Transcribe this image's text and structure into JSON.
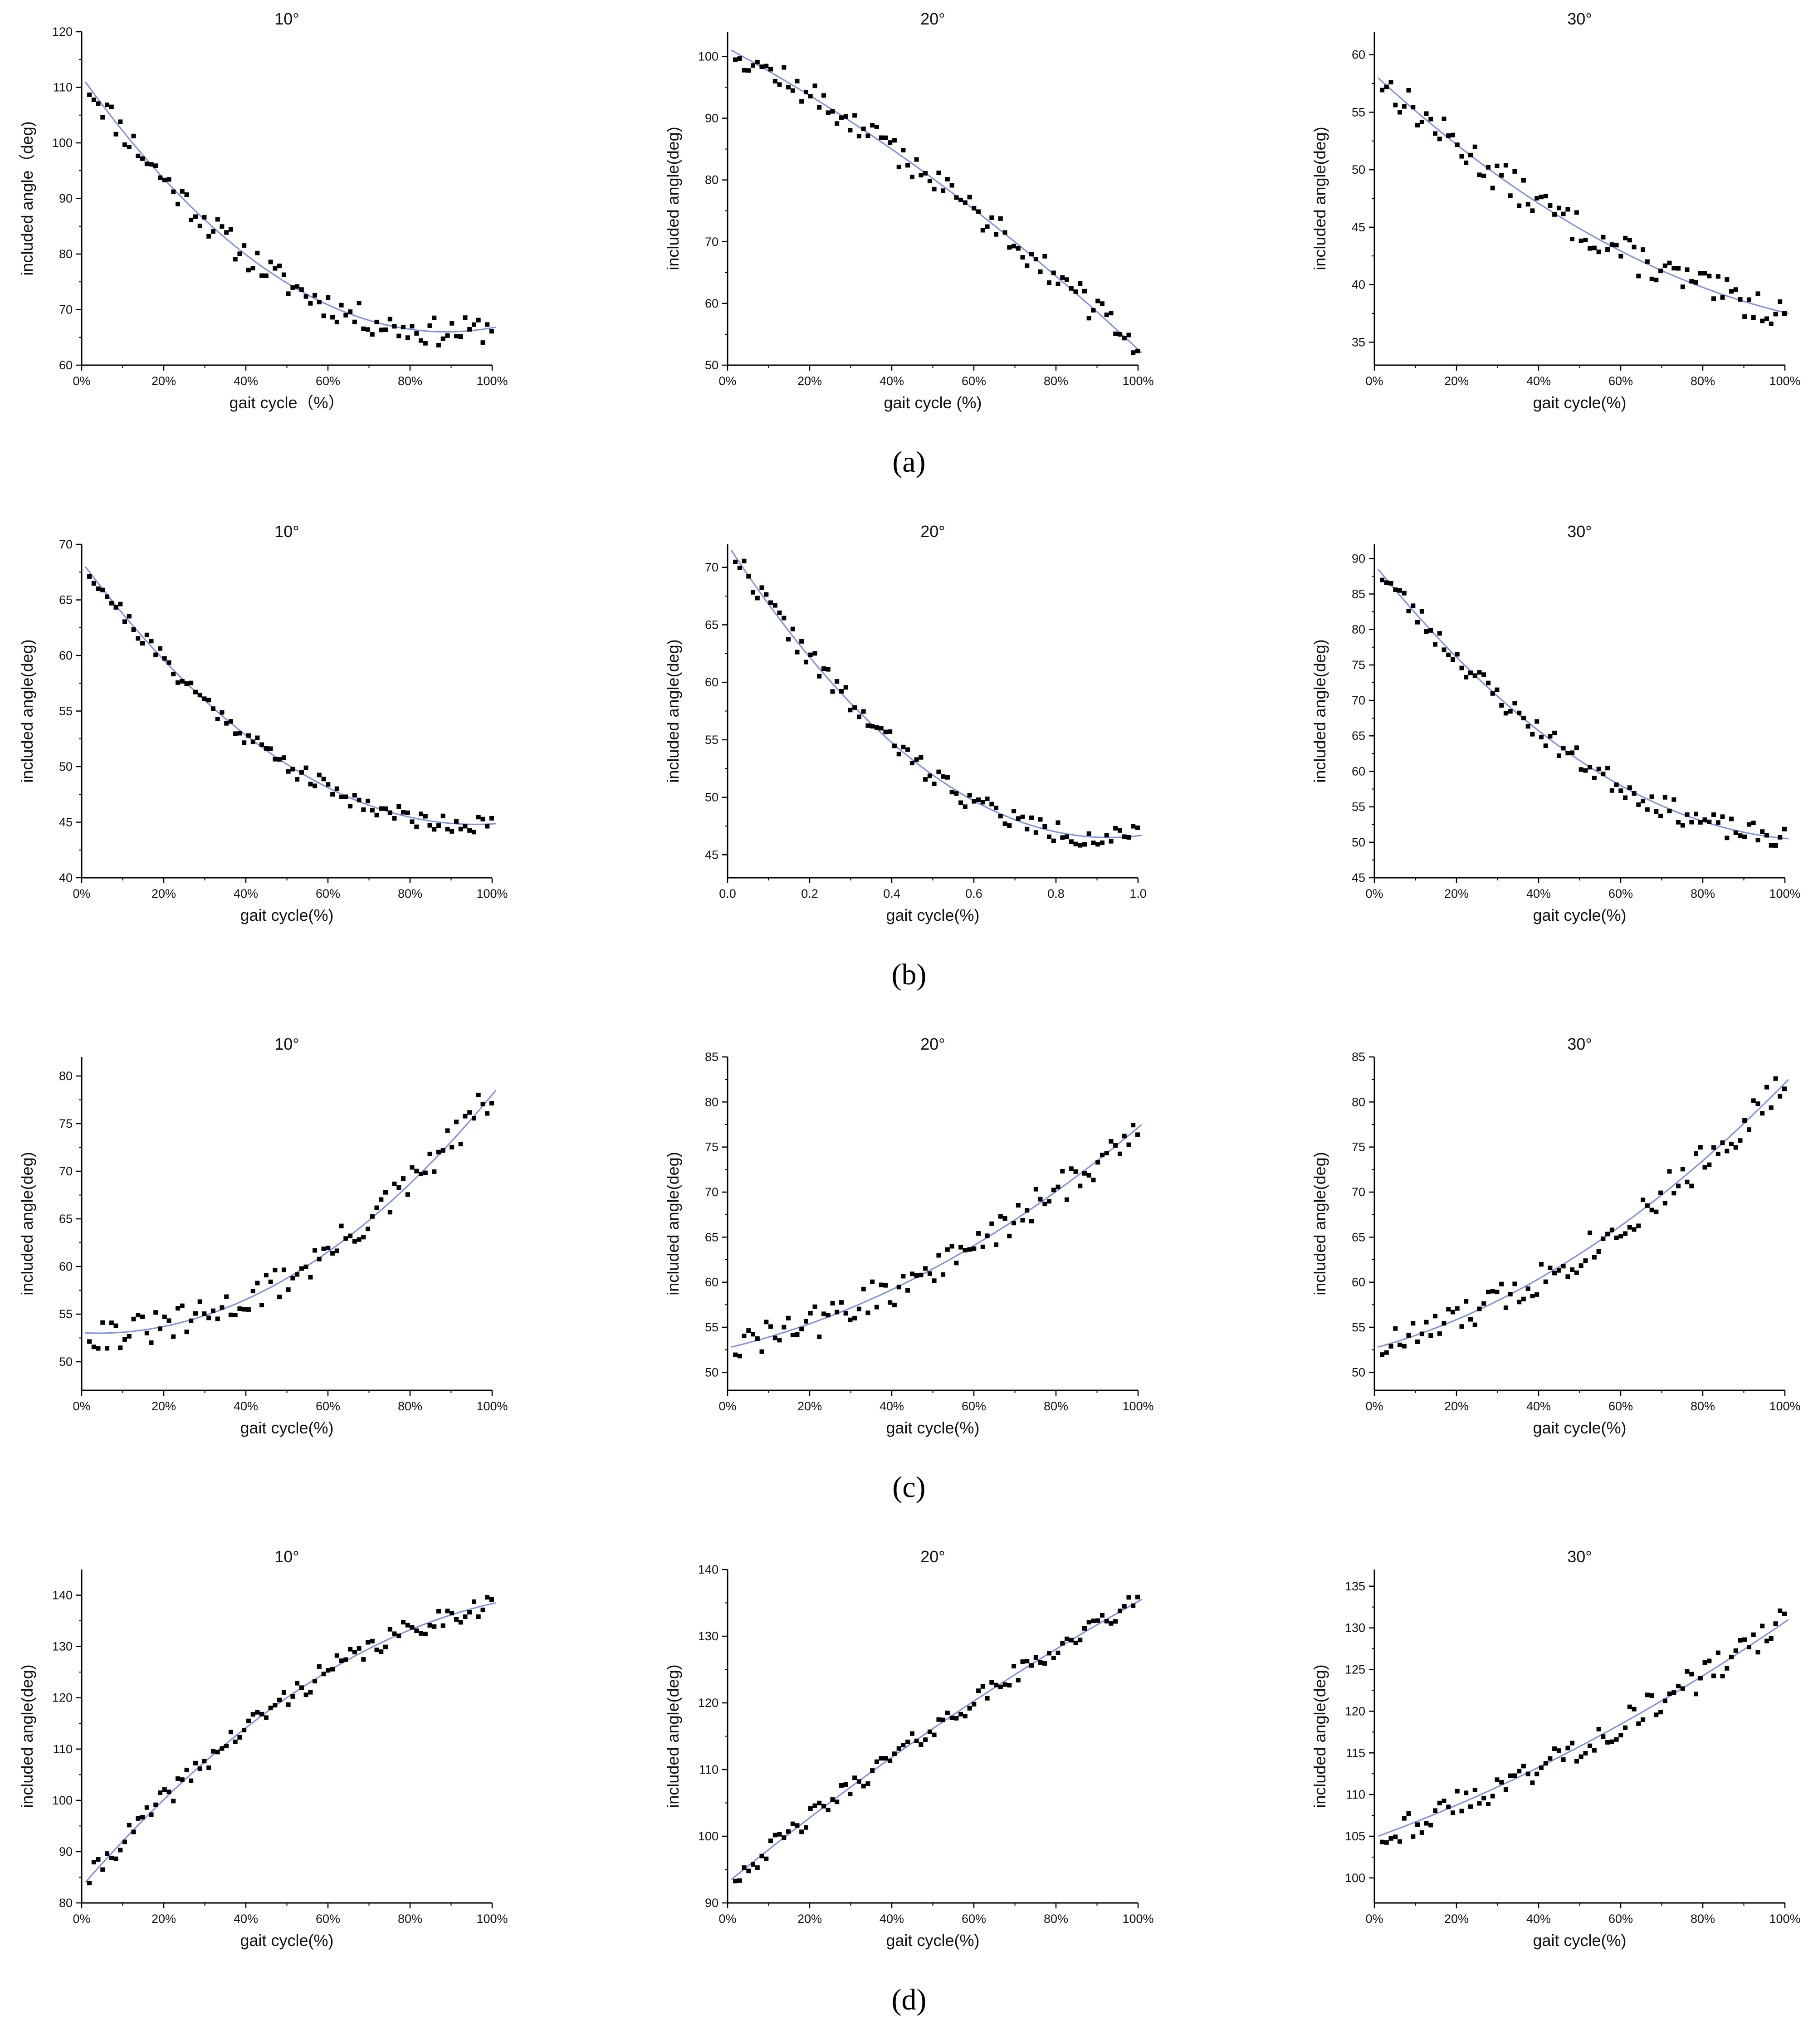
{
  "figure": {
    "row_labels": [
      "(a)",
      "(b)",
      "(c)",
      "(d)"
    ],
    "colors": {
      "fit": "#7b8fe6",
      "points": "#000000",
      "axes": "#000000"
    }
  },
  "chart_data": [
    {
      "id": "a1",
      "type": "scatter",
      "title": "10°",
      "xlabel": "gait cycle（%）",
      "ylabel": "included angle（deg)",
      "xticks": [
        "0%",
        "20%",
        "40%",
        "60%",
        "80%",
        "100%"
      ],
      "xlim": [
        0,
        100
      ],
      "yticks": [
        60,
        70,
        80,
        90,
        100,
        110,
        120
      ],
      "ylim": [
        60,
        120
      ],
      "fit": {
        "start": 111,
        "end": 66,
        "mid": 78.7,
        "min_at": 88
      },
      "noise": 1.6,
      "seed": 11,
      "series": [
        {
          "name": "measured",
          "values": []
        },
        {
          "name": "fit",
          "values": []
        }
      ]
    },
    {
      "id": "a2",
      "type": "scatter",
      "title": "20°",
      "xlabel": "gait cycle (%)",
      "ylabel": "included angle(deg)",
      "xticks": [
        "0%",
        "20%",
        "40%",
        "60%",
        "80%",
        "100%"
      ],
      "xlim": [
        0,
        100
      ],
      "yticks": [
        50,
        60,
        70,
        80,
        90,
        100
      ],
      "ylim": [
        50,
        104
      ],
      "fit": {
        "start": 101,
        "end": 52,
        "mid": 79.8
      },
      "noise": 1.4,
      "seed": 12,
      "series": [
        {
          "name": "measured",
          "values": []
        },
        {
          "name": "fit",
          "values": []
        }
      ]
    },
    {
      "id": "a3",
      "type": "scatter",
      "title": "30°",
      "xlabel": "gait cycle(%)",
      "ylabel": "included angle(deg)",
      "xticks": [
        "0%",
        "20%",
        "40%",
        "60%",
        "80%",
        "100%"
      ],
      "xlim": [
        0,
        100
      ],
      "yticks": [
        35,
        40,
        45,
        50,
        55,
        60
      ],
      "ylim": [
        33,
        62
      ],
      "fit": {
        "start": 58,
        "end": 37.5,
        "mid": 44.7
      },
      "noise": 0.9,
      "seed": 13,
      "series": [
        {
          "name": "measured",
          "values": []
        },
        {
          "name": "fit",
          "values": []
        }
      ]
    },
    {
      "id": "b1",
      "type": "scatter",
      "title": "10°",
      "xlabel": "gait cycle(%)",
      "ylabel": "included angle(deg)",
      "xticks": [
        "0%",
        "20%",
        "40%",
        "60%",
        "80%",
        "100%"
      ],
      "xlim": [
        0,
        100
      ],
      "yticks": [
        40,
        45,
        50,
        55,
        60,
        65,
        70
      ],
      "ylim": [
        40,
        70
      ],
      "fit": {
        "start": 68,
        "end": 44.8,
        "mid": 51.2,
        "min_at": 95
      },
      "noise": 0.5,
      "seed": 21,
      "series": [
        {
          "name": "measured",
          "values": []
        },
        {
          "name": "fit",
          "values": []
        }
      ]
    },
    {
      "id": "b2",
      "type": "scatter",
      "title": "20°",
      "xlabel": "gait cycle(%)",
      "ylabel": "included angle(deg)",
      "xticks": [
        "0.0",
        "0.2",
        "0.4",
        "0.6",
        "0.8",
        "1.0"
      ],
      "xlim": [
        0,
        1
      ],
      "yticks": [
        45,
        50,
        55,
        60,
        65,
        70
      ],
      "ylim": [
        43,
        72
      ],
      "fit": {
        "start": 71.5,
        "end": 46.5,
        "mid": 52.3,
        "min_at": 92
      },
      "noise": 0.6,
      "seed": 22,
      "series": [
        {
          "name": "measured",
          "values": []
        },
        {
          "name": "fit",
          "values": []
        }
      ]
    },
    {
      "id": "b3",
      "type": "scatter",
      "title": "30°",
      "xlabel": "gait cycle(%)",
      "ylabel": "included angle(deg)",
      "xticks": [
        "0%",
        "20%",
        "40%",
        "60%",
        "80%",
        "100%"
      ],
      "xlim": [
        0,
        100
      ],
      "yticks": [
        45,
        50,
        55,
        60,
        65,
        70,
        75,
        80,
        85,
        90
      ],
      "ylim": [
        45,
        92
      ],
      "fit": {
        "start": 88.5,
        "end": 50.5,
        "mid": 61.2
      },
      "noise": 1.0,
      "seed": 23,
      "series": [
        {
          "name": "measured",
          "values": []
        },
        {
          "name": "fit",
          "values": []
        }
      ]
    },
    {
      "id": "c1",
      "type": "scatter",
      "title": "10°",
      "xlabel": "gait cycle(%)",
      "ylabel": "included angle(deg)",
      "xticks": [
        "0%",
        "20%",
        "40%",
        "60%",
        "80%",
        "100%"
      ],
      "xlim": [
        0,
        100
      ],
      "yticks": [
        50,
        55,
        60,
        65,
        70,
        75,
        80
      ],
      "ylim": [
        47,
        82
      ],
      "fit": {
        "start": 53,
        "end": 78.5,
        "mid": 59.8,
        "min_at": 3
      },
      "noise": 1.1,
      "seed": 31,
      "series": [
        {
          "name": "measured",
          "values": []
        },
        {
          "name": "fit",
          "values": []
        }
      ]
    },
    {
      "id": "c2",
      "type": "scatter",
      "title": "20°",
      "xlabel": "gait cycle(%)",
      "ylabel": "included angle(deg)",
      "xticks": [
        "0%",
        "20%",
        "40%",
        "60%",
        "80%",
        "100%"
      ],
      "xlim": [
        0,
        100
      ],
      "yticks": [
        50,
        55,
        60,
        65,
        70,
        75,
        80,
        85
      ],
      "ylim": [
        48,
        85
      ],
      "fit": {
        "start": 52.8,
        "end": 77.5,
        "mid": 61.7
      },
      "noise": 1.2,
      "seed": 32,
      "series": [
        {
          "name": "measured",
          "values": []
        },
        {
          "name": "fit",
          "values": []
        }
      ]
    },
    {
      "id": "c3",
      "type": "scatter",
      "title": "30°",
      "xlabel": "gait cycle(%)",
      "ylabel": "included angle(deg)",
      "xticks": [
        "0%",
        "20%",
        "40%",
        "60%",
        "80%",
        "100%"
      ],
      "xlim": [
        0,
        100
      ],
      "yticks": [
        50,
        55,
        60,
        65,
        70,
        75,
        80,
        85
      ],
      "ylim": [
        48,
        85
      ],
      "fit": {
        "start": 52.8,
        "end": 82.5,
        "mid": 63.4
      },
      "noise": 1.2,
      "seed": 33,
      "series": [
        {
          "name": "measured",
          "values": []
        },
        {
          "name": "fit",
          "values": []
        }
      ]
    },
    {
      "id": "d1",
      "type": "scatter",
      "title": "10°",
      "xlabel": "gait cycle(%)",
      "ylabel": "included angle(deg)",
      "xticks": [
        "0%",
        "20%",
        "40%",
        "60%",
        "80%",
        "100%"
      ],
      "xlim": [
        0,
        100
      ],
      "yticks": [
        80,
        90,
        100,
        110,
        120,
        130,
        140
      ],
      "ylim": [
        80,
        145
      ],
      "fit": {
        "start": 84,
        "end": 138.5,
        "mid": 120.5
      },
      "noise": 1.3,
      "seed": 41,
      "series": [
        {
          "name": "measured",
          "values": []
        },
        {
          "name": "fit",
          "values": []
        }
      ]
    },
    {
      "id": "d2",
      "type": "scatter",
      "title": "20°",
      "xlabel": "gait cycle(%)",
      "ylabel": "included angle(deg)",
      "xticks": [
        "0%",
        "20%",
        "40%",
        "60%",
        "80%",
        "100%"
      ],
      "xlim": [
        0,
        100
      ],
      "yticks": [
        90,
        100,
        110,
        120,
        130,
        140
      ],
      "ylim": [
        90,
        140
      ],
      "fit": {
        "start": 93.5,
        "end": 135.5,
        "mid": 116.5
      },
      "noise": 0.9,
      "seed": 42,
      "series": [
        {
          "name": "measured",
          "values": []
        },
        {
          "name": "fit",
          "values": []
        }
      ]
    },
    {
      "id": "d3",
      "type": "scatter",
      "title": "30°",
      "xlabel": "gait cycle(%)",
      "ylabel": "included angle(deg)",
      "xticks": [
        "0%",
        "20%",
        "40%",
        "60%",
        "80%",
        "100%"
      ],
      "xlim": [
        0,
        100
      ],
      "yticks": [
        100,
        105,
        110,
        115,
        120,
        125,
        130,
        135
      ],
      "ylim": [
        97,
        137
      ],
      "fit": {
        "start": 105,
        "end": 131,
        "mid": 116
      },
      "noise": 1.1,
      "seed": 43,
      "series": [
        {
          "name": "measured",
          "values": []
        },
        {
          "name": "fit",
          "values": []
        }
      ]
    }
  ]
}
